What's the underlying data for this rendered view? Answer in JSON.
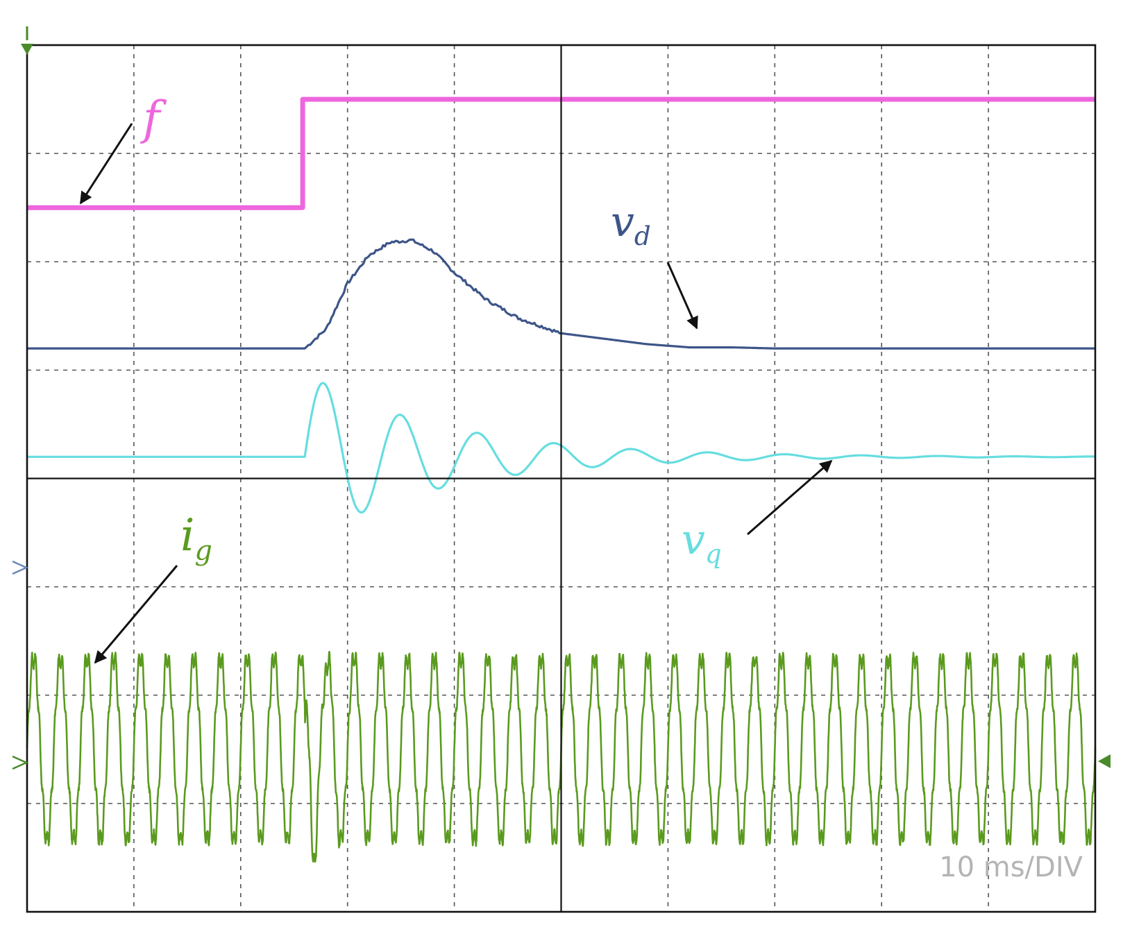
{
  "chart_data": {
    "type": "line",
    "title": "",
    "timebase_label": "10 ms/DIV",
    "x_divisions": 10,
    "y_divisions": 8,
    "x_range_div": [
      0,
      10
    ],
    "grid": true,
    "colors": {
      "f": "#ee66dd",
      "vd": "#3d5588",
      "vq": "#66dde0",
      "ig": "#5a9a1e",
      "grid": "#555555",
      "frame": "#111111",
      "marker_top": "#4a8a2a",
      "marker_side": "#6b87b8",
      "marker_right": "#4a8a2a"
    },
    "series": [
      {
        "key": "f",
        "name": "f",
        "label_main": "f",
        "label_sub": "",
        "x_div": [
          0,
          2.58,
          2.58,
          10
        ],
        "y_div": [
          6.5,
          6.5,
          7.5,
          7.5
        ],
        "units": "divisions"
      },
      {
        "key": "vd",
        "name": "v_d",
        "label_main": "v",
        "label_sub": "d",
        "x_div": [
          0,
          2.6,
          2.8,
          3.0,
          3.2,
          3.4,
          3.6,
          3.8,
          4.0,
          4.3,
          4.6,
          5.0,
          5.4,
          5.8,
          6.2,
          6.6,
          7.0,
          8.0,
          10
        ],
        "y_div": [
          5.2,
          5.2,
          5.38,
          5.8,
          6.06,
          6.18,
          6.2,
          6.1,
          5.9,
          5.65,
          5.48,
          5.34,
          5.29,
          5.24,
          5.21,
          5.21,
          5.2,
          5.2,
          5.2
        ],
        "units": "divisions"
      },
      {
        "key": "vq",
        "name": "v_q",
        "label_main": "v",
        "label_sub": "q",
        "baseline_div": 4.2,
        "step_time_div": 2.6,
        "osc_amp_div": 0.78,
        "osc_period_div": 0.72,
        "decay_per_div": 0.78,
        "units": "divisions"
      },
      {
        "key": "ig",
        "name": "i_g",
        "label_main": "i",
        "label_sub": "g",
        "center_div": 1.5,
        "amp_div": 0.85,
        "cycles": 40,
        "disturbance_time_div": 2.6,
        "disturbance_amp_div": 0.45,
        "units": "divisions"
      }
    ]
  }
}
